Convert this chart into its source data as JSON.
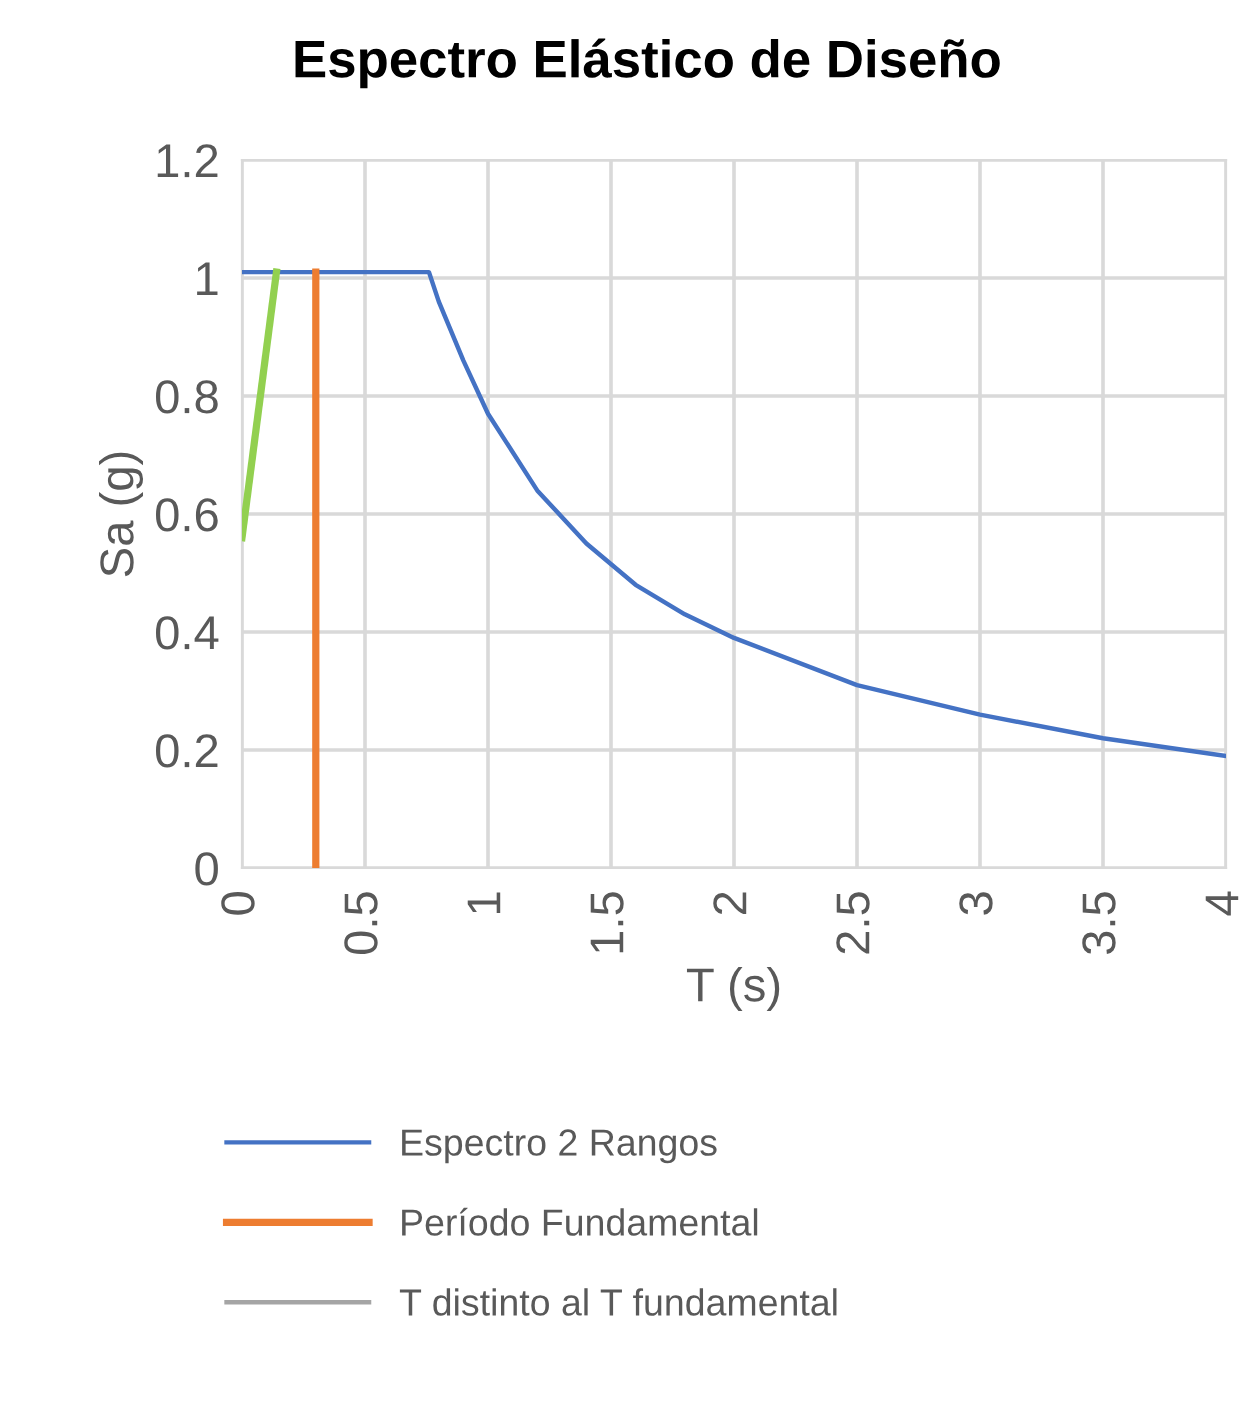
{
  "chart_data": {
    "type": "line",
    "title": "Espectro Elástico de Diseño",
    "xlabel": "T (s)",
    "ylabel": "Sa (g)",
    "xlim": [
      0,
      4
    ],
    "xticks": [
      0,
      0.5,
      1,
      1.5,
      2,
      2.5,
      3,
      3.5,
      4
    ],
    "ylim": [
      0,
      1.2
    ],
    "yticks": [
      0,
      0.2,
      0.4,
      0.6,
      0.8,
      1,
      1.2
    ],
    "grid": true,
    "legend": "bottom",
    "marker": "none",
    "line_style": "solid",
    "series": [
      {
        "name": "Espectro 2 Rangos",
        "color": "#4472c4",
        "x": [
          0,
          0.76,
          0.8,
          0.9,
          1.0,
          1.2,
          1.4,
          1.6,
          1.8,
          2.0,
          2.5,
          3.0,
          3.5,
          4.0
        ],
        "values": [
          1.01,
          1.01,
          0.96,
          0.86,
          0.77,
          0.64,
          0.55,
          0.48,
          0.43,
          0.39,
          0.31,
          0.26,
          0.22,
          0.19
        ]
      },
      {
        "name": "Período Fundamental",
        "color": "#ed7d31",
        "x": [
          0.3,
          0.3
        ],
        "values": [
          0,
          1.01
        ]
      },
      {
        "name": "T distinto al T fundamental",
        "color": "#a5a5a5"
      },
      {
        "color": "#92d050",
        "x": [
          0,
          0.14
        ],
        "values": [
          0.56,
          1.01
        ]
      }
    ]
  }
}
